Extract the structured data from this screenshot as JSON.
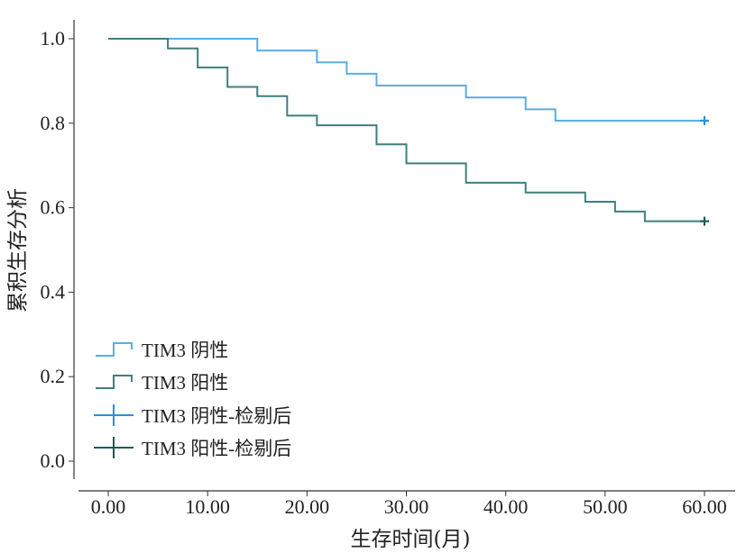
{
  "chart_data": {
    "type": "line",
    "subtype": "kaplan-meier step",
    "title": "",
    "xlabel": "生存时间(月)",
    "ylabel": "累积生存分析",
    "xlim": [
      -3,
      63
    ],
    "ylim": [
      -0.07,
      1.07
    ],
    "xticks": [
      0,
      10,
      20,
      30,
      40,
      50,
      60
    ],
    "xtick_labels": [
      "0.00",
      "10.00",
      "20.00",
      "30.00",
      "40.00",
      "50.00",
      "60.00"
    ],
    "yticks": [
      0,
      0.2,
      0.4,
      0.6,
      0.8,
      1.0
    ],
    "ytick_labels": [
      "0.0",
      "0.2",
      "0.4",
      "0.6",
      "0.8",
      "1.0"
    ],
    "grid": false,
    "legend_position": "bottom-left",
    "series": [
      {
        "name": "TIM3 阴性",
        "color": "#5aaee3",
        "x": [
          0,
          15,
          21,
          24,
          27,
          36,
          42,
          45,
          60
        ],
        "y": [
          1.0,
          0.972,
          0.944,
          0.917,
          0.889,
          0.861,
          0.833,
          0.806,
          0.806
        ]
      },
      {
        "name": "TIM3 阳性",
        "color": "#3f7f7c",
        "x": [
          0,
          6,
          9,
          12,
          15,
          18,
          21,
          27,
          30,
          36,
          42,
          48,
          51,
          54,
          60
        ],
        "y": [
          1.0,
          0.977,
          0.932,
          0.886,
          0.864,
          0.818,
          0.795,
          0.75,
          0.705,
          0.659,
          0.636,
          0.614,
          0.591,
          0.568,
          0.568
        ]
      }
    ],
    "censored": [
      {
        "name": "TIM3 阴性-检剔后",
        "color": "#2f8fd6",
        "x": [
          60
        ],
        "y": [
          0.806
        ]
      },
      {
        "name": "TIM3 阳性-检剔后",
        "color": "#1f5a55",
        "x": [
          60
        ],
        "y": [
          0.568
        ]
      }
    ]
  }
}
